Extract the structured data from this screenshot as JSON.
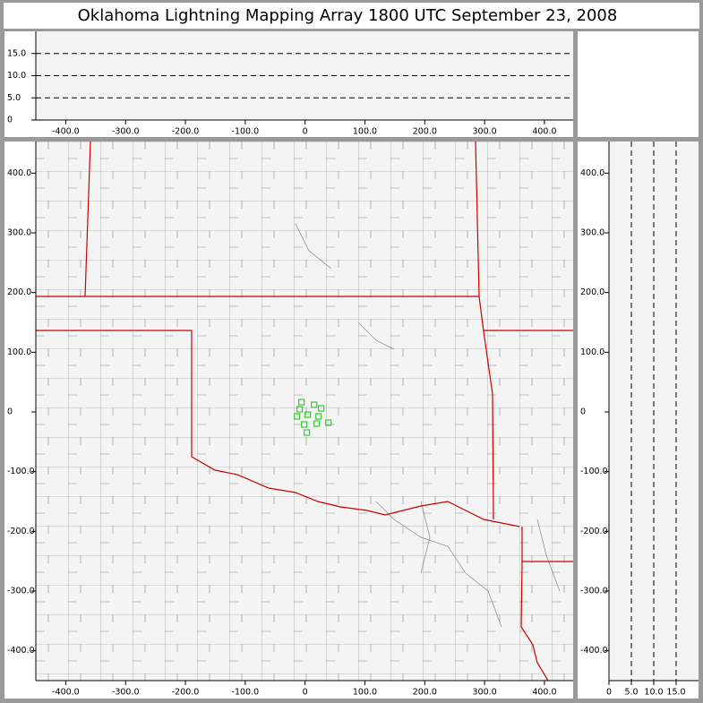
{
  "title": "Oklahoma Lightning Mapping Array   1800 UTC  September 23, 2008",
  "chart_data": [
    {
      "type": "scatter",
      "xlim": [
        -450,
        448
      ],
      "ylim": [
        0,
        20
      ],
      "xticks": [
        {
          "value": -400,
          "label": "-400.0"
        },
        {
          "value": -300,
          "label": "-300.0"
        },
        {
          "value": -200,
          "label": "-200.0"
        },
        {
          "value": -100,
          "label": "-100.0"
        },
        0,
        {
          "value": 100,
          "label": "100.0"
        },
        {
          "value": 200,
          "label": "200.0"
        },
        {
          "value": 300,
          "label": "300.0"
        },
        {
          "value": 400,
          "label": "400.0"
        }
      ],
      "yticks": [
        0,
        {
          "value": 5,
          "label": "5.0"
        },
        {
          "value": 10,
          "label": "10.0"
        },
        {
          "value": 15,
          "label": "15.0"
        }
      ],
      "grid": "y"
    },
    {
      "type": "scatter",
      "x": [
        -6,
        15,
        -9,
        27,
        4.5,
        -13.5,
        22.5,
        39,
        -1.5,
        19.5,
        3
      ],
      "values": [
        16.5,
        12,
        4.5,
        6,
        -4.5,
        -7.5,
        -7.5,
        -18,
        -21,
        -19.5,
        -34.5
      ],
      "color": "#33cc33",
      "xlim": [
        -450,
        448
      ],
      "ylim": [
        -450,
        453
      ],
      "xticks": [
        {
          "value": -400,
          "label": "-400.0"
        },
        {
          "value": -300,
          "label": "-300.0"
        },
        {
          "value": -200,
          "label": "-200.0"
        },
        {
          "value": -100,
          "label": "-100.0"
        },
        0,
        {
          "value": 100,
          "label": "100.0"
        },
        {
          "value": 200,
          "label": "200.0"
        },
        {
          "value": 300,
          "label": "300.0"
        },
        {
          "value": 400,
          "label": "400.0"
        }
      ],
      "yticks": [
        {
          "value": 400,
          "label": "400.0"
        },
        {
          "value": 300,
          "label": "300.0"
        },
        {
          "value": 200,
          "label": "200.0"
        },
        {
          "value": 100,
          "label": "100.0"
        },
        0,
        {
          "value": -100,
          "label": "-100.0"
        },
        {
          "value": -200,
          "label": "-200.0"
        },
        {
          "value": -300,
          "label": "-300.0"
        },
        {
          "value": -400,
          "label": "-400.0"
        }
      ]
    },
    {
      "type": "scatter",
      "xlim": [
        0,
        20
      ],
      "ylim": [
        -450,
        453
      ],
      "xticks": [
        0,
        {
          "value": 5,
          "label": "5.0"
        },
        {
          "value": 10,
          "label": "10.0"
        },
        {
          "value": 15,
          "label": "15.0"
        }
      ],
      "yticks": [
        {
          "value": 400,
          "label": "400.0"
        },
        {
          "value": 300,
          "label": "300.0"
        },
        {
          "value": 200,
          "label": "200.0"
        },
        {
          "value": 100,
          "label": "100.0"
        },
        0,
        {
          "value": -100,
          "label": "-100.0"
        },
        {
          "value": -200,
          "label": "-200.0"
        },
        {
          "value": -300,
          "label": "-300.0"
        },
        {
          "value": -400,
          "label": "-400.0"
        }
      ],
      "grid": "x"
    }
  ]
}
